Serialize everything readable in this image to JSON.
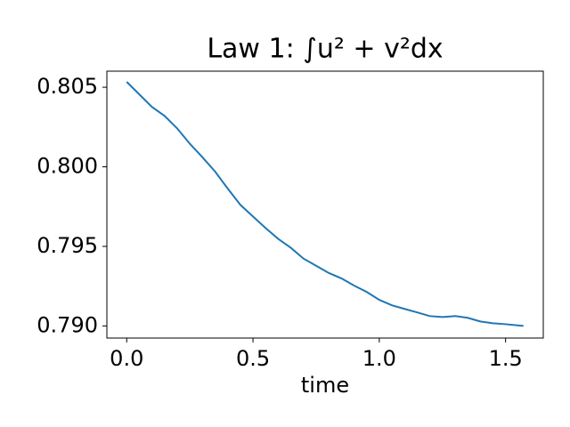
{
  "chart_data": {
    "type": "line",
    "title": "Law 1: ∫u² + v²dx",
    "x_label": "time",
    "x": [
      0,
      0.05,
      0.1,
      0.15,
      0.2,
      0.25,
      0.3,
      0.35,
      0.4,
      0.45,
      0.5,
      0.55,
      0.6,
      0.65,
      0.7,
      0.75,
      0.8,
      0.85,
      0.9,
      0.95,
      1.0,
      1.05,
      1.1,
      1.15,
      1.2,
      1.25,
      1.3,
      1.35,
      1.4,
      1.45,
      1.5,
      1.5708
    ],
    "series": [
      {
        "name": "law1",
        "color": "#1f77b4",
        "values": [
          0.80534,
          0.80455,
          0.80376,
          0.8032,
          0.80241,
          0.80145,
          0.8006,
          0.7997,
          0.79863,
          0.79761,
          0.79688,
          0.79615,
          0.79547,
          0.79491,
          0.79423,
          0.79378,
          0.79333,
          0.79299,
          0.79254,
          0.79214,
          0.79164,
          0.7913,
          0.79107,
          0.79085,
          0.79062,
          0.79056,
          0.79062,
          0.79051,
          0.79028,
          0.79017,
          0.79011,
          0.79
        ]
      }
    ],
    "xlim": [
      -0.0785,
      1.6493
    ],
    "ylim": [
      0.78924,
      0.80601
    ],
    "xticks": [
      {
        "value": 0,
        "label": "0.0"
      },
      0.5,
      {
        "value": 1,
        "label": "1.0"
      },
      1.5
    ],
    "yticks": [
      {
        "value": 0.79,
        "label": "0.790"
      },
      0.795,
      {
        "value": 0.8,
        "label": "0.800"
      },
      0.805
    ]
  }
}
